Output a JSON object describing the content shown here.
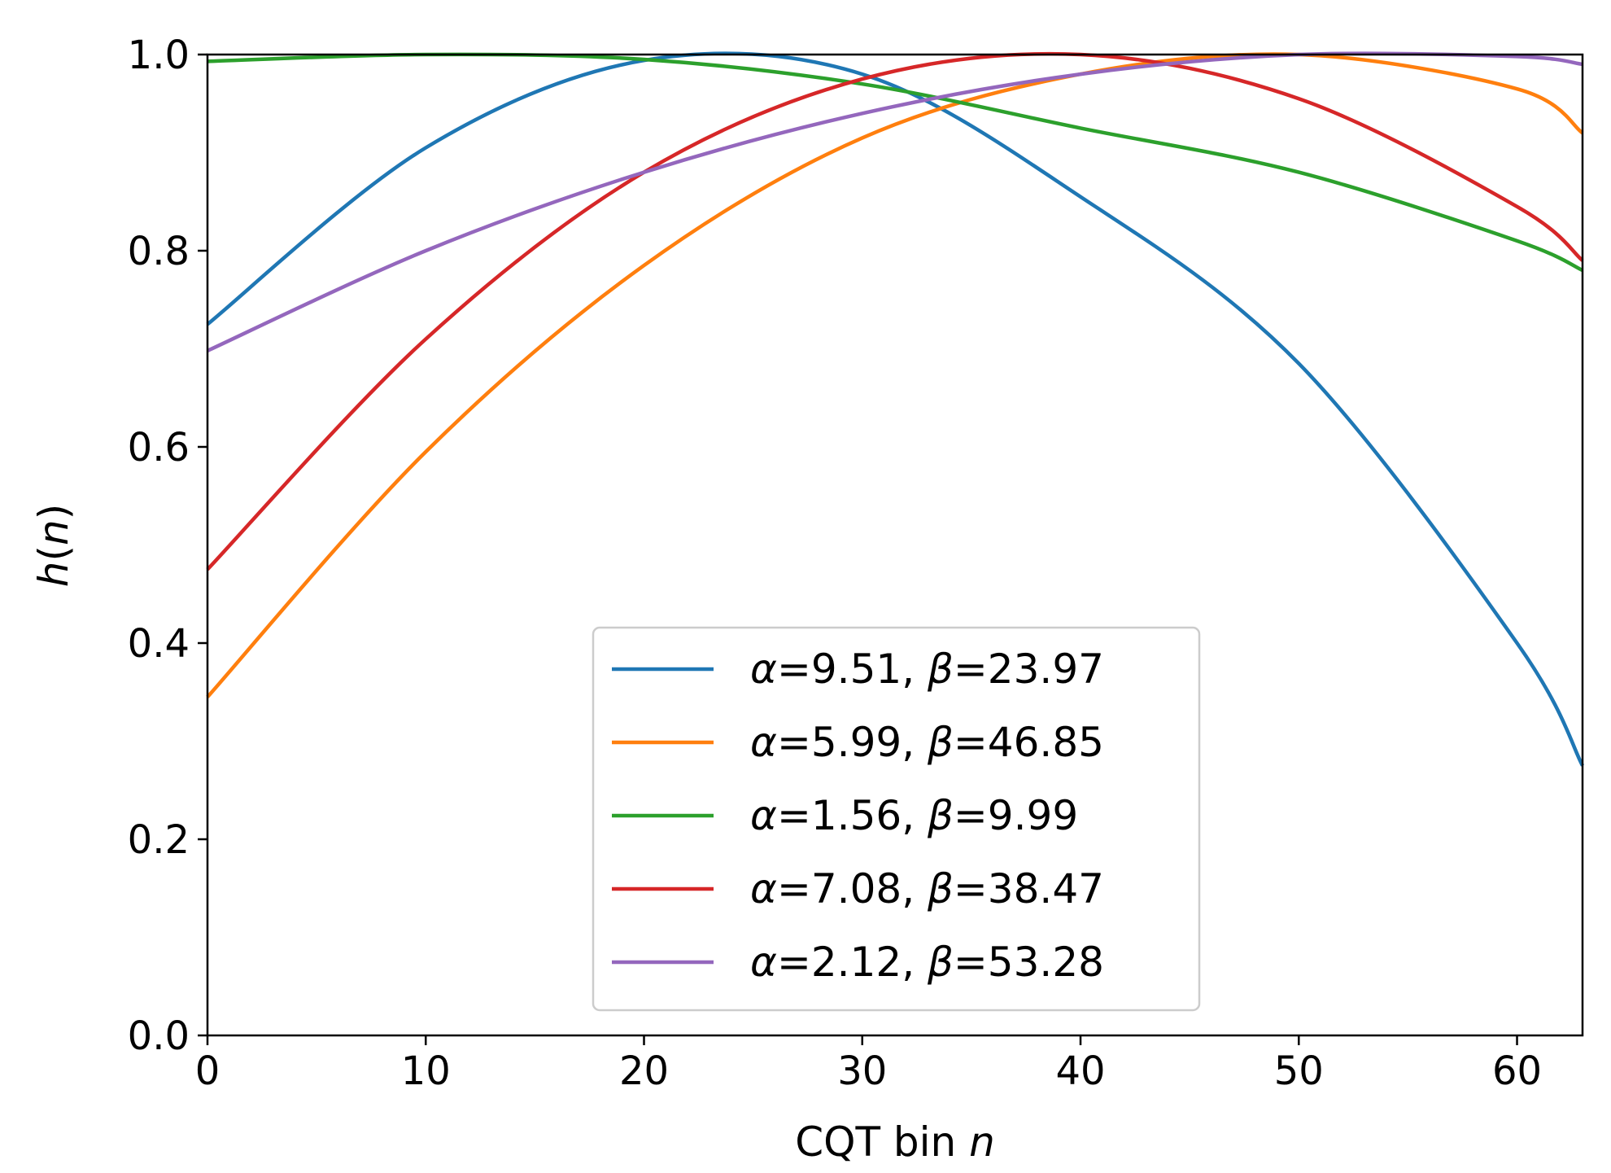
{
  "chart_data": {
    "type": "line",
    "title": "",
    "xlabel_main": "CQT bin ",
    "xlabel_var": "n",
    "ylabel_func": "h(",
    "ylabel_var": "n",
    "ylabel_close": ")",
    "xlim": [
      0,
      63
    ],
    "ylim": [
      0.0,
      1.0
    ],
    "xticks": [
      0,
      10,
      20,
      30,
      40,
      50,
      60
    ],
    "xtick_labels": [
      "0",
      "10",
      "20",
      "30",
      "40",
      "50",
      "60"
    ],
    "yticks": [
      0.0,
      0.2,
      0.4,
      0.6,
      0.8,
      1.0
    ],
    "ytick_labels": [
      "0.0",
      "0.2",
      "0.4",
      "0.6",
      "0.8",
      "1.0"
    ],
    "grid": false,
    "legend_position": "bottom-center",
    "x": [
      0,
      10,
      20,
      30,
      40,
      50,
      60,
      63
    ],
    "series": [
      {
        "name": "α=9.51, β=23.97",
        "alpha_text": "9.51",
        "beta_text": "23.97",
        "color": "#1f77b4",
        "values": [
          0.725,
          0.905,
          0.994,
          0.98,
          0.855,
          0.685,
          0.4,
          0.275
        ]
      },
      {
        "name": "α=5.99, β=46.85",
        "alpha_text": "5.99",
        "beta_text": "46.85",
        "color": "#ff7f0e",
        "values": [
          0.345,
          0.595,
          0.785,
          0.915,
          0.98,
          1.0,
          0.965,
          0.92
        ]
      },
      {
        "name": "α=1.56, β=9.99",
        "alpha_text": "1.56",
        "beta_text": "9.99",
        "color": "#2ca02c",
        "values": [
          0.993,
          1.0,
          0.995,
          0.97,
          0.925,
          0.88,
          0.81,
          0.78
        ]
      },
      {
        "name": "α=7.08, β=38.47",
        "alpha_text": "7.08",
        "beta_text": "38.47",
        "color": "#d62728",
        "values": [
          0.475,
          0.71,
          0.88,
          0.975,
          1.0,
          0.955,
          0.845,
          0.79
        ]
      },
      {
        "name": "α=2.12, β=53.28",
        "alpha_text": "2.12",
        "beta_text": "53.28",
        "color": "#9467bd",
        "values": [
          0.698,
          0.8,
          0.88,
          0.94,
          0.98,
          1.0,
          0.998,
          0.99
        ]
      }
    ]
  }
}
